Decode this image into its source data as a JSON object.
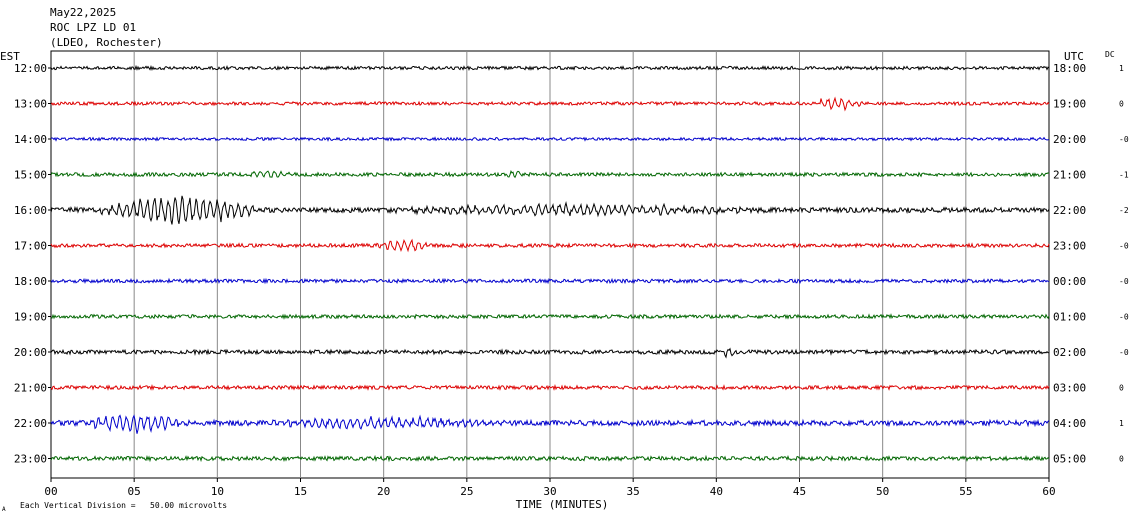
{
  "chart_data": {
    "type": "line",
    "title_lines": [
      "May22,2025",
      "ROC LPZ LD 01",
      "(LDEO, Rochester)"
    ],
    "left_axis_label": "EST",
    "right_axis_label": "UTC",
    "dc_label": "DC",
    "xlabel": "TIME (MINUTES)",
    "xlim": [
      0,
      60
    ],
    "x_ticks": [
      "00",
      "05",
      "10",
      "15",
      "20",
      "25",
      "30",
      "35",
      "40",
      "45",
      "50",
      "55",
      "60"
    ],
    "scale_note": "Each Vertical Division =   50.00 microvolts",
    "corner_mark": "A",
    "trace_colors": [
      "#000000",
      "#dd0000",
      "#0000cc",
      "#006600"
    ],
    "grid": true,
    "rows": [
      {
        "est": "12:00",
        "utc": "18:00",
        "dc": "1",
        "color": "#000000",
        "base_amp": 1.6,
        "events": []
      },
      {
        "est": "13:00",
        "utc": "19:00",
        "dc": "0",
        "color": "#dd0000",
        "base_amp": 1.6,
        "events": [
          {
            "start": 45.8,
            "end": 51.0,
            "amp": 6
          }
        ]
      },
      {
        "est": "14:00",
        "utc": "20:00",
        "dc": "-0",
        "color": "#0000cc",
        "base_amp": 1.4,
        "events": []
      },
      {
        "est": "15:00",
        "utc": "21:00",
        "dc": "-1",
        "color": "#006600",
        "base_amp": 1.8,
        "events": [
          {
            "start": 11.8,
            "end": 17.0,
            "amp": 4
          },
          {
            "start": 27.3,
            "end": 29.5,
            "amp": 3.5
          }
        ]
      },
      {
        "est": "16:00",
        "utc": "22:00",
        "dc": "-2",
        "color": "#000000",
        "base_amp": 2.5,
        "events": [
          {
            "start": 3.0,
            "end": 20.0,
            "amp": 14
          },
          {
            "start": 20.0,
            "end": 60.0,
            "amp": 5
          }
        ]
      },
      {
        "est": "17:00",
        "utc": "23:00",
        "dc": "-0",
        "color": "#dd0000",
        "base_amp": 1.8,
        "events": [
          {
            "start": 19.5,
            "end": 25.5,
            "amp": 5
          }
        ]
      },
      {
        "est": "18:00",
        "utc": "00:00",
        "dc": "-0",
        "color": "#0000cc",
        "base_amp": 1.8,
        "events": []
      },
      {
        "est": "19:00",
        "utc": "01:00",
        "dc": "-0",
        "color": "#006600",
        "base_amp": 1.8,
        "events": []
      },
      {
        "est": "20:00",
        "utc": "02:00",
        "dc": "-0",
        "color": "#000000",
        "base_amp": 2.0,
        "events": [
          {
            "start": 40.2,
            "end": 41.8,
            "amp": 4
          }
        ]
      },
      {
        "est": "21:00",
        "utc": "03:00",
        "dc": "0",
        "color": "#dd0000",
        "base_amp": 1.8,
        "events": []
      },
      {
        "est": "22:00",
        "utc": "04:00",
        "dc": "1",
        "color": "#0000cc",
        "base_amp": 2.6,
        "events": [
          {
            "start": 2.0,
            "end": 13.0,
            "amp": 9
          },
          {
            "start": 13.0,
            "end": 38.0,
            "amp": 5
          }
        ]
      },
      {
        "est": "23:00",
        "utc": "05:00",
        "dc": "0",
        "color": "#006600",
        "base_amp": 2.0,
        "events": []
      }
    ]
  }
}
